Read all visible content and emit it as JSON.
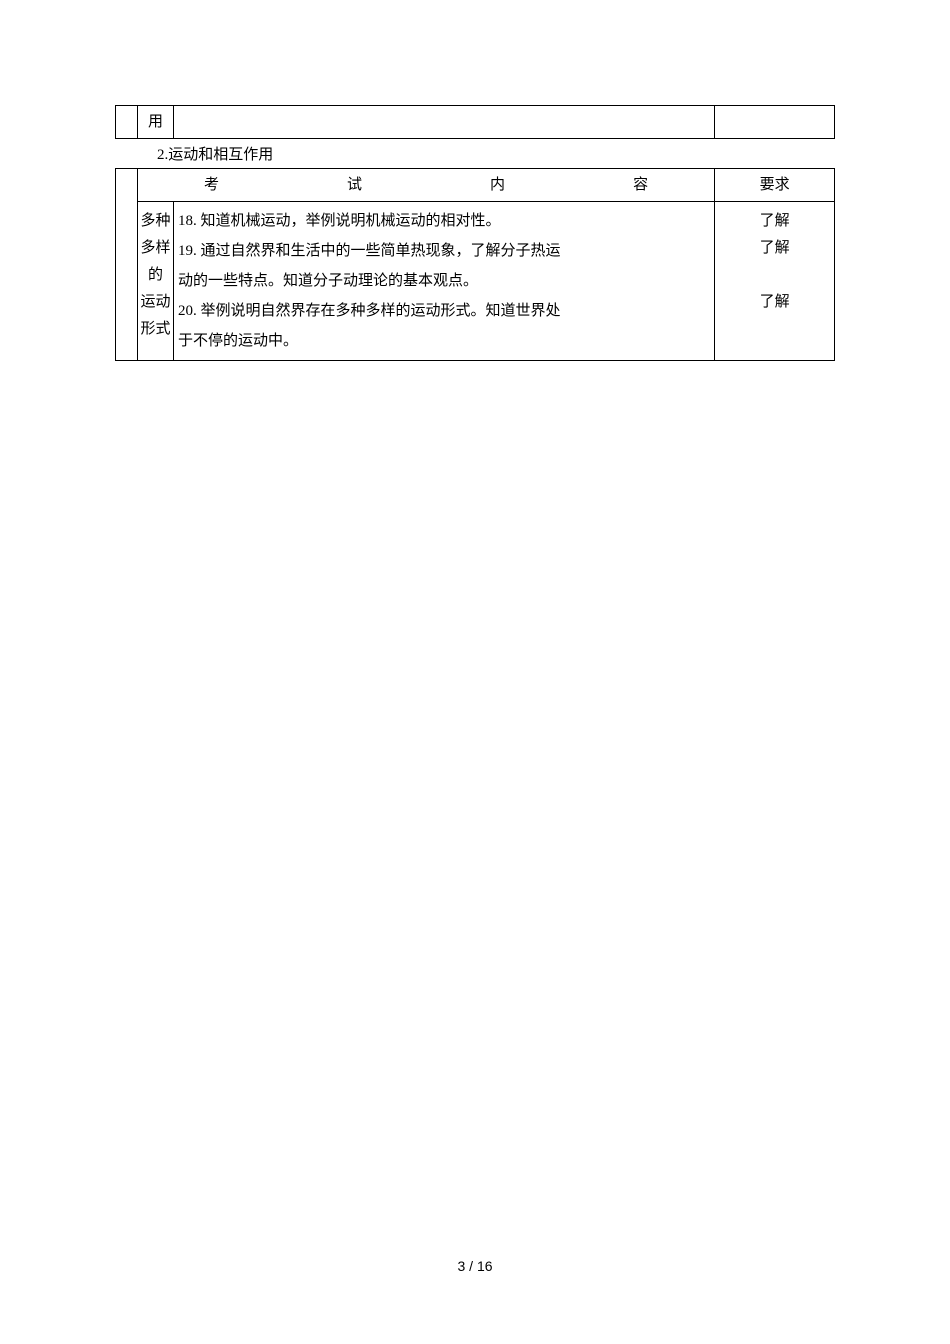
{
  "table1": {
    "col_b_text": "用"
  },
  "section_title": "2.运动和相互作用",
  "table2": {
    "header": {
      "col_c_chars": [
        "考",
        "试",
        "内",
        "容"
      ],
      "col_d": "要求"
    },
    "category_label": "多种多样的运动形式",
    "content_lines": [
      "18. 知道机械运动，举例说明机械运动的相对性。",
      "19. 通过自然界和生活中的一些简单热现象，了解分子热运",
      "动的一些特点。知道分子动理论的基本观点。",
      "20. 举例说明自然界存在多种多样的运动形式。知道世界处",
      "于不停的运动中。"
    ],
    "requirements": [
      "了解",
      "了解",
      "",
      "了解",
      ""
    ]
  },
  "page_number": "3 / 16"
}
